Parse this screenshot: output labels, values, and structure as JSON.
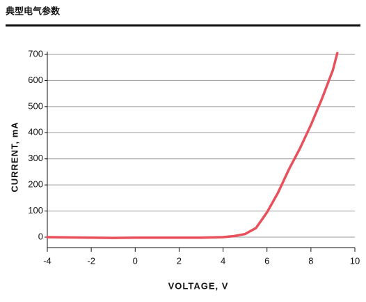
{
  "header": {
    "title": "典型电气参数"
  },
  "chart_data": {
    "type": "line",
    "xlabel": "VOLTAGE, V",
    "ylabel": "CURRENT, mA",
    "x": [
      -4,
      -2,
      -1,
      0,
      2,
      3,
      4,
      4.5,
      5,
      5.5,
      6,
      6.5,
      7,
      7.5,
      8,
      8.5,
      9,
      9.2
    ],
    "series": [
      {
        "name": "Current",
        "color": "#e8505b",
        "values": [
          0,
          -2,
          -3,
          -2,
          -2,
          -2,
          0,
          4,
          12,
          35,
          95,
          170,
          260,
          340,
          430,
          530,
          640,
          705
        ]
      }
    ],
    "xlim": [
      -4,
      10
    ],
    "xticks": [
      -4,
      -2,
      0,
      2,
      4,
      6,
      8,
      10
    ],
    "ylim": [
      -40,
      700
    ],
    "yticks": [
      0,
      100,
      200,
      300,
      400,
      500,
      600,
      700
    ],
    "grid": true
  }
}
